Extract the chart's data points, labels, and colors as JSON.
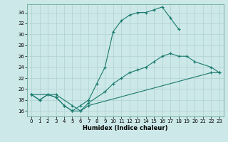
{
  "xlabel": "Humidex (Indice chaleur)",
  "xlim": [
    -0.5,
    23.5
  ],
  "ylim": [
    15,
    35.5
  ],
  "xticks": [
    0,
    1,
    2,
    3,
    4,
    5,
    6,
    7,
    8,
    9,
    10,
    11,
    12,
    13,
    14,
    15,
    16,
    17,
    18,
    19,
    20,
    21,
    22,
    23
  ],
  "yticks": [
    16,
    18,
    20,
    22,
    24,
    26,
    28,
    30,
    32,
    34
  ],
  "bg_color": "#cce8e8",
  "grid_color": "#b0d0d0",
  "line_color": "#1a7a6e",
  "line1_x": [
    0,
    1,
    2,
    3,
    4,
    5,
    6,
    7,
    8,
    9,
    10,
    11,
    12,
    13,
    14,
    15,
    16,
    17,
    18
  ],
  "line1_y": [
    19,
    18,
    19,
    18.5,
    17,
    16,
    17,
    18,
    21,
    24,
    30.5,
    32.5,
    33.5,
    34,
    34,
    34.5,
    35,
    33,
    31
  ],
  "line2_x": [
    0,
    3,
    5,
    6,
    7,
    9,
    10,
    11,
    12,
    13,
    14,
    15,
    16,
    17,
    18,
    19,
    20,
    22,
    23
  ],
  "line2_y": [
    19,
    19,
    17,
    16,
    17.5,
    19.5,
    21,
    22,
    23,
    23.5,
    24,
    25,
    26,
    26.5,
    26,
    26,
    25,
    24,
    23
  ],
  "line3_x": [
    0,
    1,
    2,
    3,
    4,
    5,
    6,
    7,
    22,
    23
  ],
  "line3_y": [
    19,
    18,
    19,
    18.5,
    17,
    16,
    16,
    17,
    23,
    23
  ]
}
